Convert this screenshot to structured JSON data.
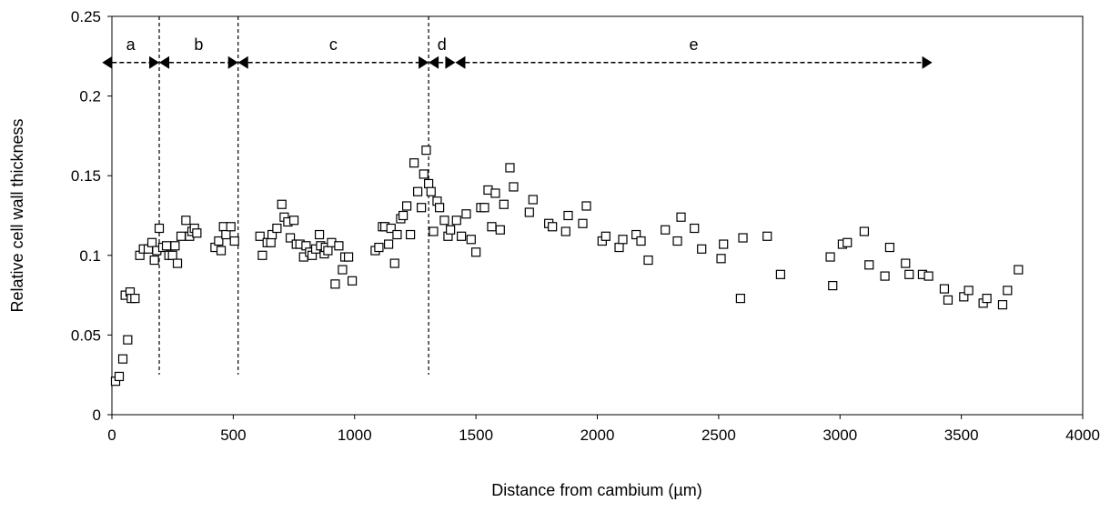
{
  "chart_data": {
    "type": "scatter",
    "title": "",
    "xlabel": "Distance from cambium (µm)",
    "ylabel": "Relative cell wall thickness",
    "xlim": [
      0,
      4000
    ],
    "ylim": [
      0,
      0.25
    ],
    "x_ticks": [
      0,
      500,
      1000,
      1500,
      2000,
      2500,
      3000,
      3500,
      4000
    ],
    "y_ticks": [
      0,
      0.05,
      0.1,
      0.15,
      0.2,
      0.25
    ],
    "x_tick_labels": [
      "0",
      "500",
      "1000",
      "1500",
      "2000",
      "2500",
      "3000",
      "3500",
      "4000"
    ],
    "y_tick_labels": [
      "0",
      "0.05",
      "0.1",
      "0.15",
      "0.2",
      "0.25"
    ],
    "grid": false,
    "marker": "open-square",
    "boundaries": [
      195,
      520,
      1305
    ],
    "zones": [
      {
        "label": "a",
        "x_start": -40,
        "x_end": 195
      },
      {
        "label": "b",
        "x_start": 195,
        "x_end": 520
      },
      {
        "label": "c",
        "x_start": 520,
        "x_end": 1305
      },
      {
        "label": "d",
        "x_start": 1305,
        "x_end": 1415
      },
      {
        "label": "e",
        "x_start": 1415,
        "x_end": 3380
      }
    ],
    "zone_arrow_y": 0.221,
    "zone_label_y": 0.229,
    "points": [
      [
        15,
        0.021
      ],
      [
        30,
        0.024
      ],
      [
        45,
        0.035
      ],
      [
        55,
        0.075
      ],
      [
        65,
        0.047
      ],
      [
        75,
        0.077
      ],
      [
        80,
        0.073
      ],
      [
        95,
        0.073
      ],
      [
        115,
        0.1
      ],
      [
        130,
        0.104
      ],
      [
        150,
        0.104
      ],
      [
        165,
        0.108
      ],
      [
        175,
        0.097
      ],
      [
        185,
        0.103
      ],
      [
        195,
        0.117
      ],
      [
        210,
        0.105
      ],
      [
        225,
        0.106
      ],
      [
        235,
        0.1
      ],
      [
        250,
        0.1
      ],
      [
        260,
        0.106
      ],
      [
        270,
        0.095
      ],
      [
        285,
        0.112
      ],
      [
        305,
        0.122
      ],
      [
        320,
        0.112
      ],
      [
        330,
        0.115
      ],
      [
        340,
        0.117
      ],
      [
        350,
        0.114
      ],
      [
        425,
        0.105
      ],
      [
        440,
        0.109
      ],
      [
        450,
        0.103
      ],
      [
        460,
        0.118
      ],
      [
        470,
        0.113
      ],
      [
        490,
        0.118
      ],
      [
        505,
        0.109
      ],
      [
        610,
        0.112
      ],
      [
        620,
        0.1
      ],
      [
        640,
        0.108
      ],
      [
        655,
        0.108
      ],
      [
        660,
        0.113
      ],
      [
        680,
        0.117
      ],
      [
        700,
        0.132
      ],
      [
        710,
        0.124
      ],
      [
        725,
        0.121
      ],
      [
        735,
        0.111
      ],
      [
        750,
        0.122
      ],
      [
        760,
        0.107
      ],
      [
        775,
        0.107
      ],
      [
        790,
        0.099
      ],
      [
        800,
        0.106
      ],
      [
        815,
        0.102
      ],
      [
        825,
        0.1
      ],
      [
        840,
        0.104
      ],
      [
        855,
        0.113
      ],
      [
        860,
        0.106
      ],
      [
        875,
        0.101
      ],
      [
        880,
        0.105
      ],
      [
        890,
        0.103
      ],
      [
        905,
        0.108
      ],
      [
        920,
        0.082
      ],
      [
        935,
        0.106
      ],
      [
        950,
        0.091
      ],
      [
        960,
        0.099
      ],
      [
        975,
        0.099
      ],
      [
        990,
        0.084
      ],
      [
        1085,
        0.103
      ],
      [
        1100,
        0.105
      ],
      [
        1115,
        0.118
      ],
      [
        1125,
        0.118
      ],
      [
        1140,
        0.107
      ],
      [
        1150,
        0.117
      ],
      [
        1165,
        0.095
      ],
      [
        1175,
        0.113
      ],
      [
        1190,
        0.123
      ],
      [
        1200,
        0.125
      ],
      [
        1215,
        0.131
      ],
      [
        1230,
        0.113
      ],
      [
        1245,
        0.158
      ],
      [
        1260,
        0.14
      ],
      [
        1275,
        0.13
      ],
      [
        1285,
        0.151
      ],
      [
        1295,
        0.166
      ],
      [
        1305,
        0.145
      ],
      [
        1315,
        0.14
      ],
      [
        1325,
        0.115
      ],
      [
        1340,
        0.134
      ],
      [
        1350,
        0.13
      ],
      [
        1370,
        0.122
      ],
      [
        1385,
        0.112
      ],
      [
        1395,
        0.116
      ],
      [
        1420,
        0.122
      ],
      [
        1440,
        0.112
      ],
      [
        1460,
        0.126
      ],
      [
        1480,
        0.11
      ],
      [
        1500,
        0.102
      ],
      [
        1520,
        0.13
      ],
      [
        1535,
        0.13
      ],
      [
        1550,
        0.141
      ],
      [
        1565,
        0.118
      ],
      [
        1580,
        0.139
      ],
      [
        1600,
        0.116
      ],
      [
        1615,
        0.132
      ],
      [
        1640,
        0.155
      ],
      [
        1655,
        0.143
      ],
      [
        1720,
        0.127
      ],
      [
        1735,
        0.135
      ],
      [
        1800,
        0.12
      ],
      [
        1815,
        0.118
      ],
      [
        1870,
        0.115
      ],
      [
        1880,
        0.125
      ],
      [
        1940,
        0.12
      ],
      [
        1955,
        0.131
      ],
      [
        2020,
        0.109
      ],
      [
        2035,
        0.112
      ],
      [
        2090,
        0.105
      ],
      [
        2105,
        0.11
      ],
      [
        2160,
        0.113
      ],
      [
        2180,
        0.109
      ],
      [
        2210,
        0.097
      ],
      [
        2280,
        0.116
      ],
      [
        2330,
        0.109
      ],
      [
        2345,
        0.124
      ],
      [
        2400,
        0.117
      ],
      [
        2430,
        0.104
      ],
      [
        2510,
        0.098
      ],
      [
        2520,
        0.107
      ],
      [
        2590,
        0.073
      ],
      [
        2600,
        0.111
      ],
      [
        2700,
        0.112
      ],
      [
        2755,
        0.088
      ],
      [
        2960,
        0.099
      ],
      [
        2970,
        0.081
      ],
      [
        3010,
        0.107
      ],
      [
        3030,
        0.108
      ],
      [
        3100,
        0.115
      ],
      [
        3120,
        0.094
      ],
      [
        3185,
        0.087
      ],
      [
        3205,
        0.105
      ],
      [
        3270,
        0.095
      ],
      [
        3285,
        0.088
      ],
      [
        3340,
        0.088
      ],
      [
        3365,
        0.087
      ],
      [
        3430,
        0.079
      ],
      [
        3445,
        0.072
      ],
      [
        3510,
        0.074
      ],
      [
        3530,
        0.078
      ],
      [
        3590,
        0.07
      ],
      [
        3605,
        0.073
      ],
      [
        3670,
        0.069
      ],
      [
        3690,
        0.078
      ],
      [
        3735,
        0.091
      ]
    ]
  }
}
